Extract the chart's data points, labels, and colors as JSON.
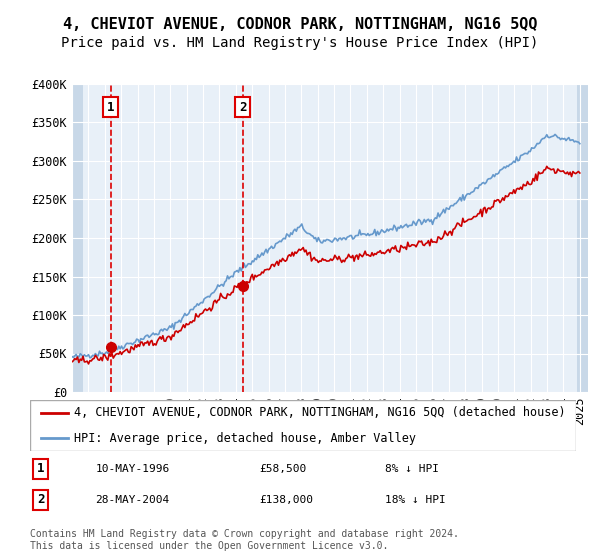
{
  "title": "4, CHEVIOT AVENUE, CODNOR PARK, NOTTINGHAM, NG16 5QQ",
  "subtitle": "Price paid vs. HM Land Registry's House Price Index (HPI)",
  "ylabel": "",
  "xlabel": "",
  "ylim": [
    0,
    400000
  ],
  "xlim_start": 1994.0,
  "xlim_end": 2025.5,
  "yticks": [
    0,
    50000,
    100000,
    150000,
    200000,
    250000,
    300000,
    350000,
    400000
  ],
  "ytick_labels": [
    "£0",
    "£50K",
    "£100K",
    "£150K",
    "£200K",
    "£250K",
    "£300K",
    "£350K",
    "£400K"
  ],
  "sale1_x": 1996.36,
  "sale1_y": 58500,
  "sale2_x": 2004.41,
  "sale2_y": 138000,
  "sale1_label": "10-MAY-1996",
  "sale2_label": "28-MAY-2004",
  "sale1_price": "£58,500",
  "sale2_price": "£138,000",
  "sale1_hpi": "8% ↓ HPI",
  "sale2_hpi": "18% ↓ HPI",
  "legend_red": "4, CHEVIOT AVENUE, CODNOR PARK, NOTTINGHAM, NG16 5QQ (detached house)",
  "legend_blue": "HPI: Average price, detached house, Amber Valley",
  "copyright": "Contains HM Land Registry data © Crown copyright and database right 2024.\nThis data is licensed under the Open Government Licence v3.0.",
  "red_color": "#cc0000",
  "blue_color": "#6699cc",
  "bg_color": "#e8f0f8",
  "hatch_color": "#c8d8e8",
  "grid_color": "#ffffff",
  "vline_color": "#dd0000",
  "title_fontsize": 11,
  "subtitle_fontsize": 10,
  "tick_fontsize": 8.5,
  "legend_fontsize": 8.5,
  "annot_fontsize": 8
}
